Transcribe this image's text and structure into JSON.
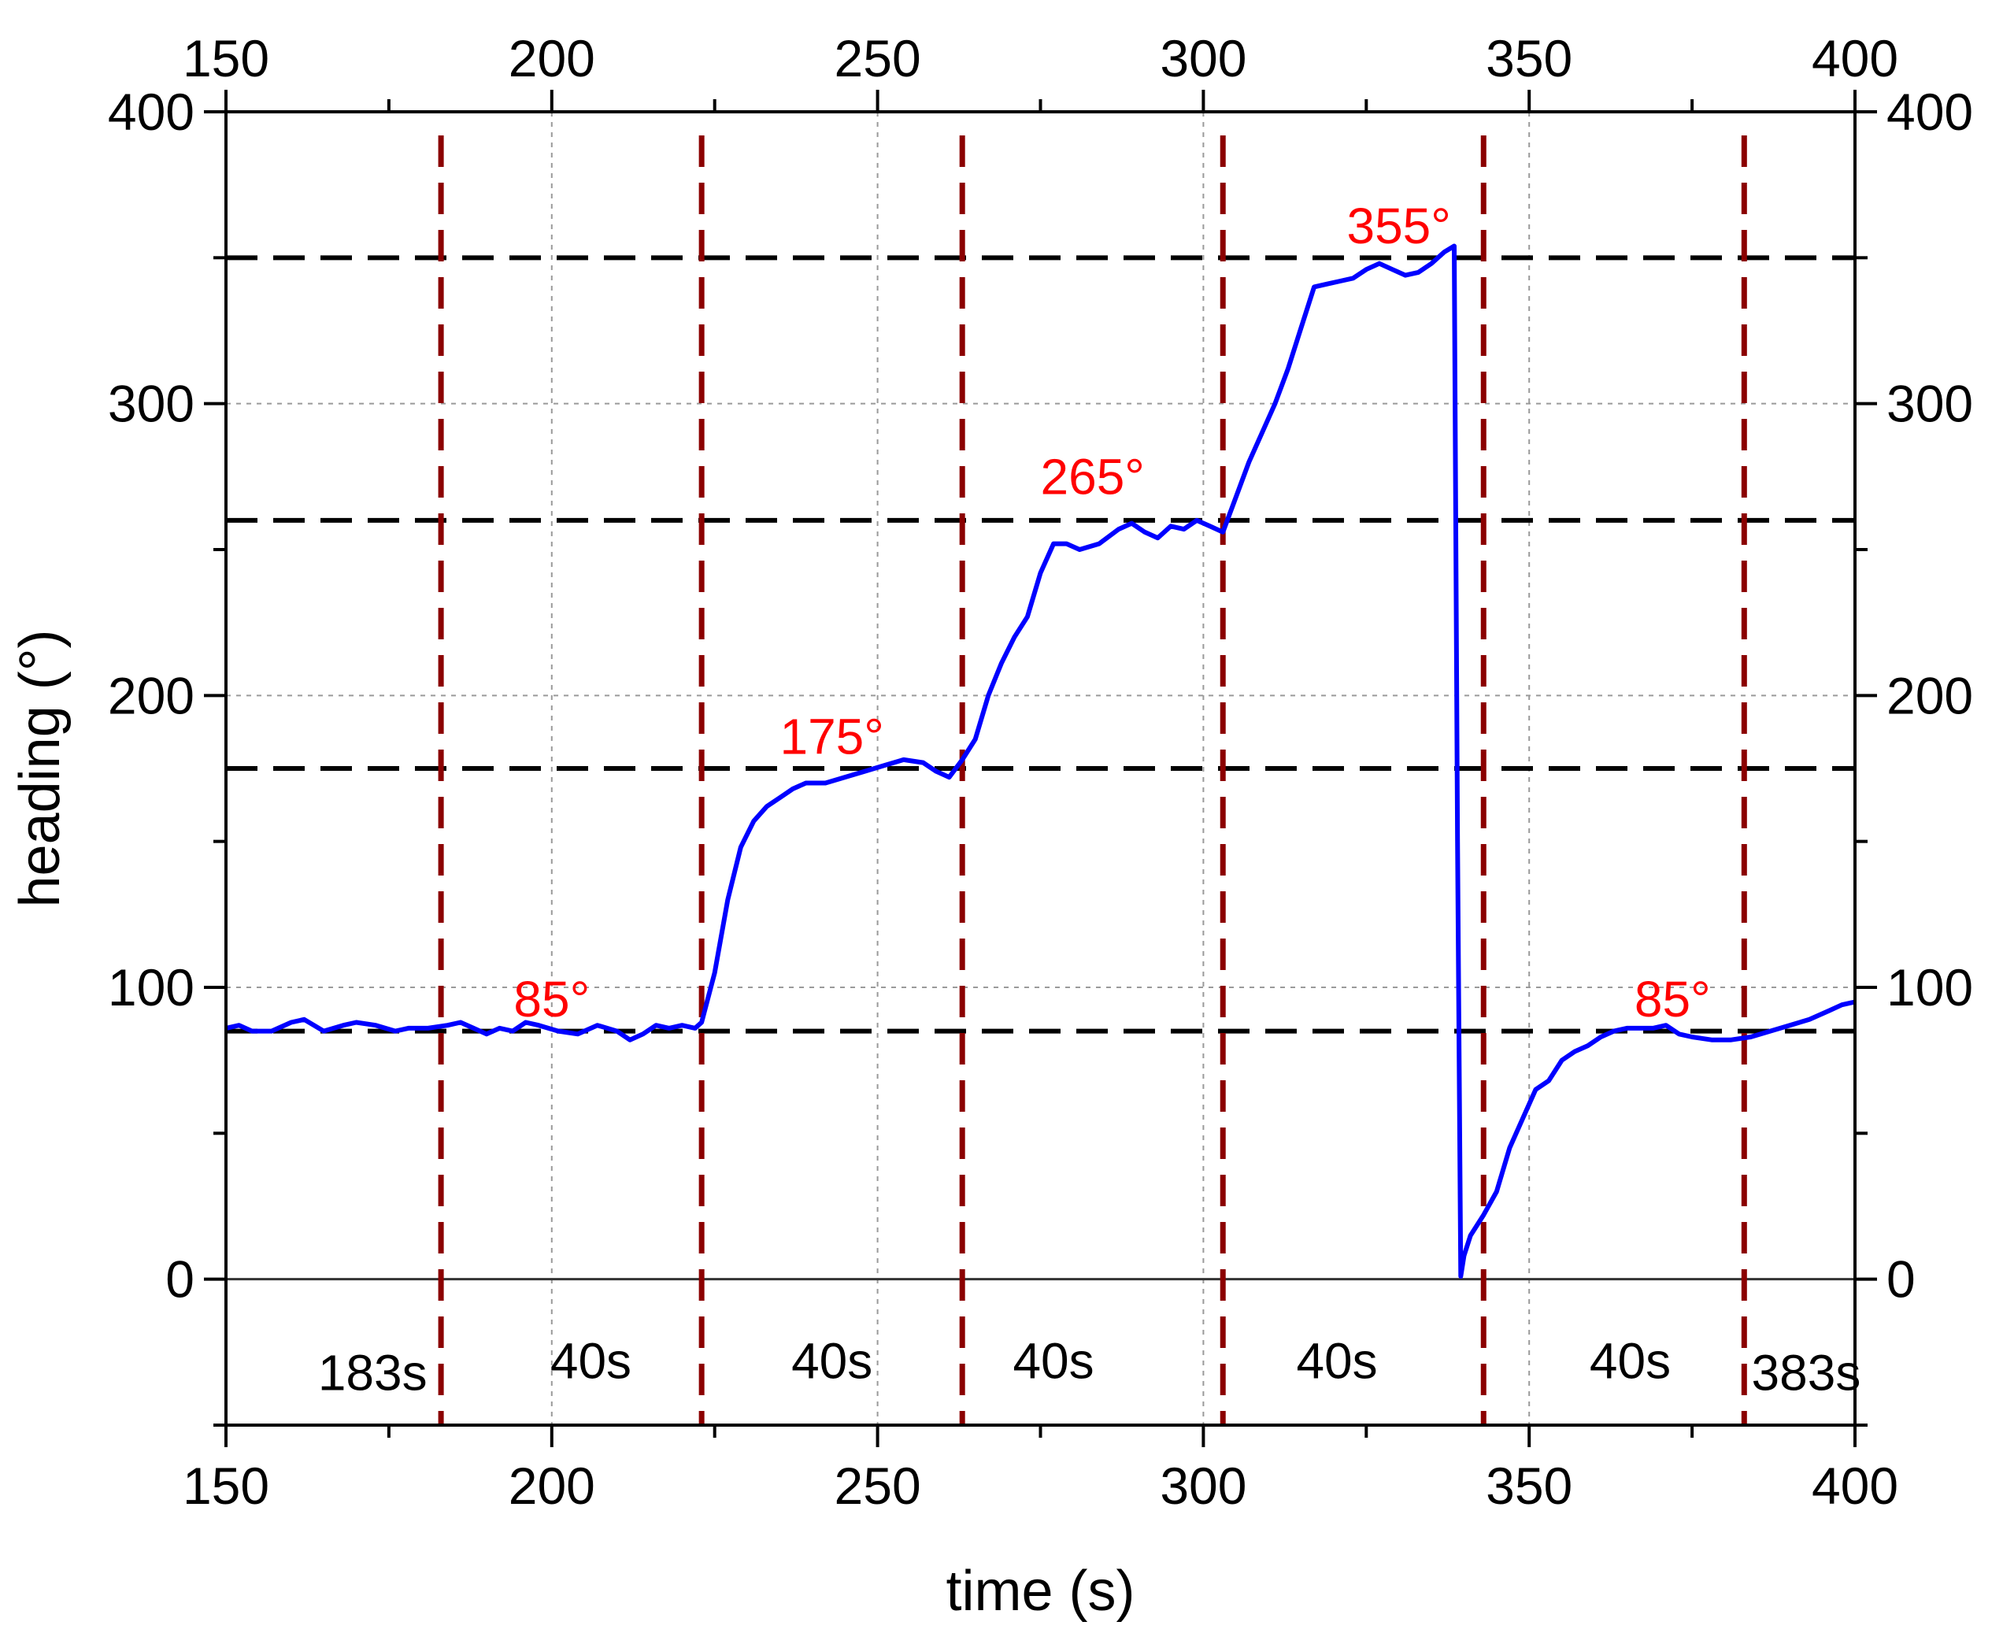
{
  "chart_data": {
    "type": "line",
    "xlabel": "time (s)",
    "ylabel": "heading (°)",
    "xlim": [
      150,
      400
    ],
    "ylim": [
      -50,
      400
    ],
    "x_ticks": [
      150,
      200,
      250,
      300,
      350,
      400
    ],
    "y_ticks": [
      0,
      100,
      200,
      300,
      400
    ],
    "x_tick_labels": [
      "150",
      "200",
      "250",
      "300",
      "350",
      "400"
    ],
    "y_tick_labels": [
      "0",
      "100",
      "200",
      "300",
      "400"
    ],
    "grid": true,
    "colors": {
      "series": "#0000ff",
      "reference": "#000000",
      "phase_lines": "#8b0000",
      "annotations": "#ff0000"
    },
    "series": [
      {
        "x": [
          150,
          152,
          154,
          157,
          160,
          162,
          165,
          168,
          170,
          173,
          176,
          178,
          181,
          184,
          186,
          188,
          190,
          192,
          194,
          196,
          198,
          201,
          204,
          207,
          210,
          212,
          214,
          216,
          218,
          220,
          222,
          223,
          225,
          227,
          229,
          231,
          233,
          235,
          237,
          239,
          242,
          245,
          248,
          251,
          254,
          257,
          259,
          261,
          263,
          265,
          267,
          269,
          271,
          273,
          275,
          277,
          279,
          281,
          284,
          287,
          289,
          291,
          293,
          295,
          297,
          299,
          301,
          303,
          305,
          307,
          309,
          311,
          313,
          315,
          317,
          319,
          321,
          323,
          325,
          327,
          329,
          331,
          333,
          335,
          337,
          338.5,
          339,
          339.5,
          340,
          341,
          343,
          345,
          347,
          349,
          351,
          353,
          355,
          357,
          359,
          361,
          363,
          365,
          367,
          369,
          371,
          373,
          375,
          378,
          381,
          384,
          387,
          390,
          393,
          396,
          398,
          400
        ],
        "y": [
          86,
          87,
          85,
          85,
          88,
          89,
          85,
          87,
          88,
          87,
          85,
          86,
          86,
          87,
          88,
          86,
          84,
          86,
          85,
          88,
          87,
          85,
          84,
          87,
          85,
          82,
          84,
          87,
          86,
          87,
          86,
          88,
          105,
          130,
          148,
          157,
          162,
          165,
          168,
          170,
          170,
          172,
          174,
          176,
          178,
          177,
          174,
          172,
          178,
          185,
          200,
          211,
          220,
          227,
          242,
          252,
          252,
          250,
          252,
          257,
          259,
          256,
          254,
          258,
          257,
          260,
          258,
          256,
          268,
          280,
          290,
          300,
          312,
          326,
          340,
          341,
          342,
          343,
          346,
          348,
          346,
          344,
          345,
          348,
          352,
          354,
          150,
          1,
          8,
          15,
          22,
          30,
          45,
          55,
          65,
          68,
          75,
          78,
          80,
          83,
          85,
          86,
          86,
          86,
          87,
          84,
          83,
          82,
          82,
          83,
          85,
          87,
          89,
          92,
          94,
          95
        ]
      }
    ],
    "reference_levels": [
      85,
      175,
      260,
      350
    ],
    "phase_boundaries": [
      183,
      223,
      263,
      303,
      343,
      383
    ],
    "heading_labels": [
      {
        "text": "85°",
        "x": 200,
        "y": 90
      },
      {
        "text": "175°",
        "x": 243,
        "y": 180
      },
      {
        "text": "265°",
        "x": 283,
        "y": 269
      },
      {
        "text": "355°",
        "x": 330,
        "y": 355
      },
      {
        "text": "85°",
        "x": 372,
        "y": 90
      }
    ],
    "duration_labels": [
      {
        "text": "183s",
        "x": 172.5,
        "y": -38
      },
      {
        "text": "40s",
        "x": 206,
        "y": -34
      },
      {
        "text": "40s",
        "x": 243,
        "y": -34
      },
      {
        "text": "40s",
        "x": 277,
        "y": -34
      },
      {
        "text": "40s",
        "x": 320.5,
        "y": -34
      },
      {
        "text": "40s",
        "x": 365.5,
        "y": -34
      },
      {
        "text": "383s",
        "x": 392.5,
        "y": -38
      }
    ]
  }
}
